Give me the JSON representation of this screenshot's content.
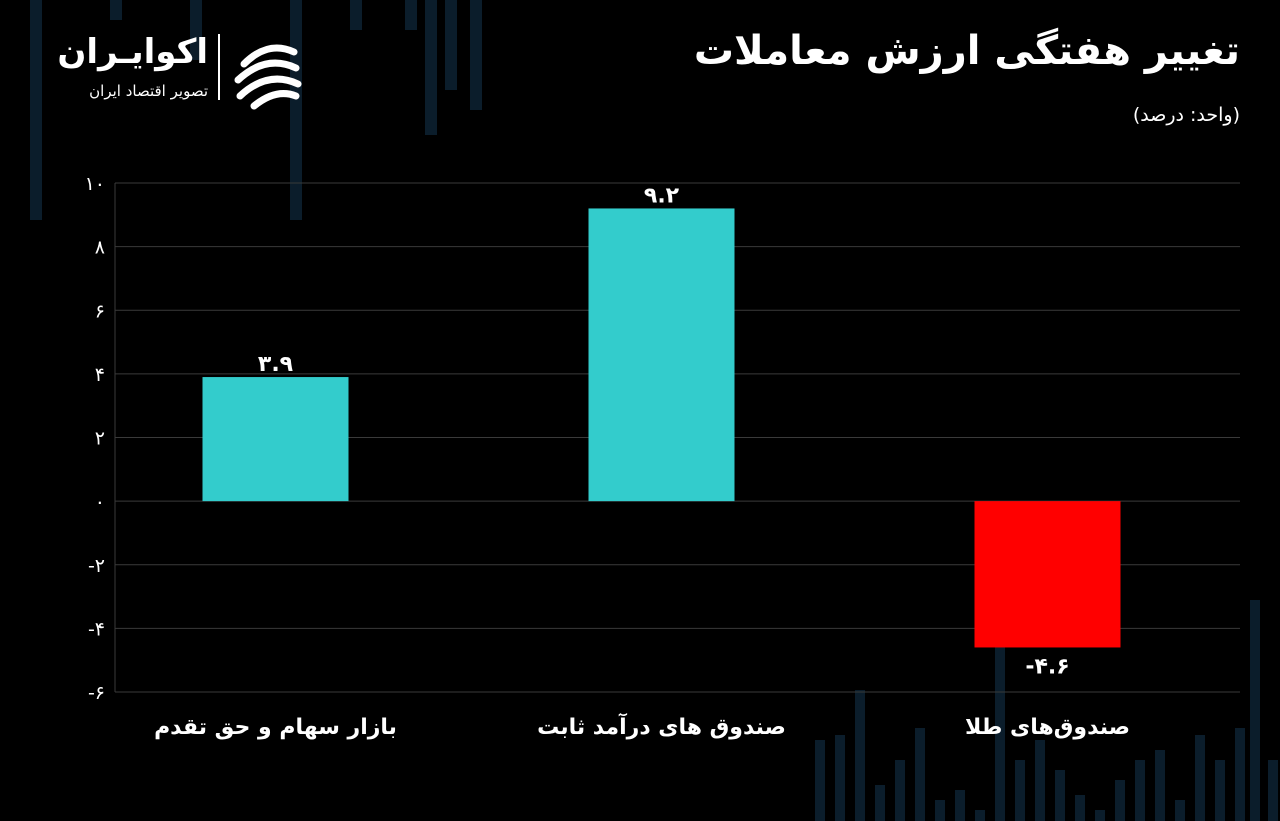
{
  "header": {
    "title": "تغییر هفتگی ارزش معاملات",
    "unit": "(واحد: درصد)"
  },
  "logo": {
    "name": "اکوایـران",
    "tagline": "تصویر اقتصاد ایران"
  },
  "colors": {
    "positive": "#33cccc",
    "negative": "#ff0000",
    "grid": "#3a3a3a",
    "background": "#000000",
    "decor": "#0b1d2b"
  },
  "chart_data": {
    "type": "bar",
    "categories": [
      "بازار سهام و حق تقدم",
      "صندوق های درآمد ثابت",
      "صندوق‌های طلا"
    ],
    "values": [
      3.9,
      9.2,
      -4.6
    ],
    "value_labels": [
      "۳.۹",
      "۹.۲",
      "-۴.۶"
    ],
    "ylim": [
      -6,
      10
    ],
    "yticks": [
      10,
      8,
      6,
      4,
      2,
      0,
      -2,
      -4,
      -6
    ],
    "ytick_labels": [
      "۱۰",
      "۸",
      "۶",
      "۴",
      "۲",
      "۰",
      "-۲",
      "-۴",
      "-۶"
    ],
    "grid": true,
    "legend": "none"
  }
}
